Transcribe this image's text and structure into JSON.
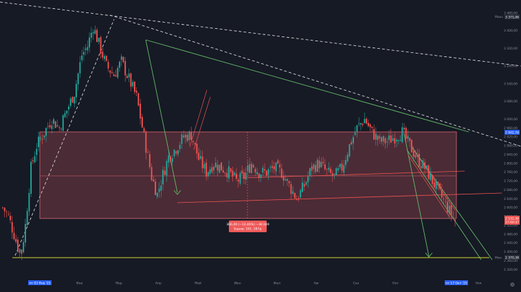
{
  "theme": {
    "background": "#161a25",
    "bull": "#26a69a",
    "bear": "#ef5350",
    "zone_fill": "rgba(190,80,90,0.32)",
    "zone_border": "#e06870",
    "trend_green": "#66bb6a",
    "level_yellow": "#d4d62a",
    "dashed": "#d6d6d6",
    "axis_text": "#8a8f9c",
    "tag_blue": "#2962ff"
  },
  "chart_data": {
    "type": "candlestick",
    "y_axis": {
      "min": 2290,
      "max": 3495,
      "ticks": [
        "3 480,00",
        "3 400,00",
        "3 320,00",
        "3 240,00",
        "3 160,00",
        "3 080,00",
        "3 000,00",
        "2 960,00",
        "2 920,00",
        "2 880,00",
        "2 840,00",
        "2 800,00",
        "2 760,00",
        "2 720,00",
        "2 680,00",
        "2 640,00",
        "2 600,00",
        "2 560,00",
        "2 520,00",
        "2 480,00",
        "2 440,00",
        "2 400,00",
        "2 360,00",
        "2 320,00",
        "2 280,00"
      ]
    },
    "x_axis": {
      "labels": [
        "пт 03 Янв '25",
        "Фев",
        "Мар",
        "Апр",
        "Май",
        "Июн",
        "Июл",
        "Авг",
        "Сен",
        "Окт",
        "пт 17 Окт '25",
        "Ноя"
      ]
    },
    "candles_anchor_closes": [
      [
        0,
        2600
      ],
      [
        3,
        2560
      ],
      [
        6,
        2480
      ],
      [
        8,
        2420
      ],
      [
        10,
        2400
      ],
      [
        12,
        2520
      ],
      [
        15,
        2780
      ],
      [
        18,
        2880
      ],
      [
        22,
        2940
      ],
      [
        26,
        3000
      ],
      [
        30,
        2960
      ],
      [
        34,
        3040
      ],
      [
        38,
        3120
      ],
      [
        42,
        3290
      ],
      [
        45,
        3330
      ],
      [
        48,
        3420
      ],
      [
        51,
        3340
      ],
      [
        55,
        3240
      ],
      [
        59,
        3200
      ],
      [
        63,
        3260
      ],
      [
        67,
        3180
      ],
      [
        71,
        3100
      ],
      [
        75,
        2920
      ],
      [
        79,
        2740
      ],
      [
        82,
        2660
      ],
      [
        85,
        2750
      ],
      [
        88,
        2830
      ],
      [
        92,
        2870
      ],
      [
        96,
        2920
      ],
      [
        100,
        2930
      ],
      [
        104,
        2820
      ],
      [
        108,
        2760
      ],
      [
        112,
        2800
      ],
      [
        116,
        2780
      ],
      [
        120,
        2760
      ],
      [
        124,
        2720
      ],
      [
        128,
        2740
      ],
      [
        132,
        2800
      ],
      [
        136,
        2760
      ],
      [
        140,
        2760
      ],
      [
        144,
        2780
      ],
      [
        148,
        2760
      ],
      [
        152,
        2700
      ],
      [
        156,
        2640
      ],
      [
        160,
        2700
      ],
      [
        164,
        2780
      ],
      [
        168,
        2800
      ],
      [
        172,
        2760
      ],
      [
        176,
        2740
      ],
      [
        180,
        2780
      ],
      [
        184,
        2880
      ],
      [
        188,
        2960
      ],
      [
        192,
        3000
      ],
      [
        196,
        2940
      ],
      [
        200,
        2900
      ],
      [
        204,
        2900
      ],
      [
        208,
        2920
      ],
      [
        212,
        2940
      ],
      [
        216,
        2880
      ],
      [
        220,
        2820
      ],
      [
        224,
        2780
      ],
      [
        228,
        2720
      ],
      [
        232,
        2660
      ],
      [
        236,
        2600
      ],
      [
        240,
        2540
      ]
    ],
    "annotations": {
      "measure": [
        "360,49 (−12,40%) −36 049",
        "Баров: 191, 287д"
      ],
      "price_tags": [
        {
          "text": "3 371,06",
          "kind": "max",
          "label": "Макс."
        },
        {
          "text": "2 902,78",
          "kind": "blue"
        },
        {
          "text": "2 532,36",
          "kind": "current"
        },
        {
          "text": "2 370,38",
          "kind": "min",
          "label": "Мин."
        }
      ],
      "current_sub": "27:00:47"
    }
  },
  "icons": {
    "settings": "gear-icon"
  }
}
